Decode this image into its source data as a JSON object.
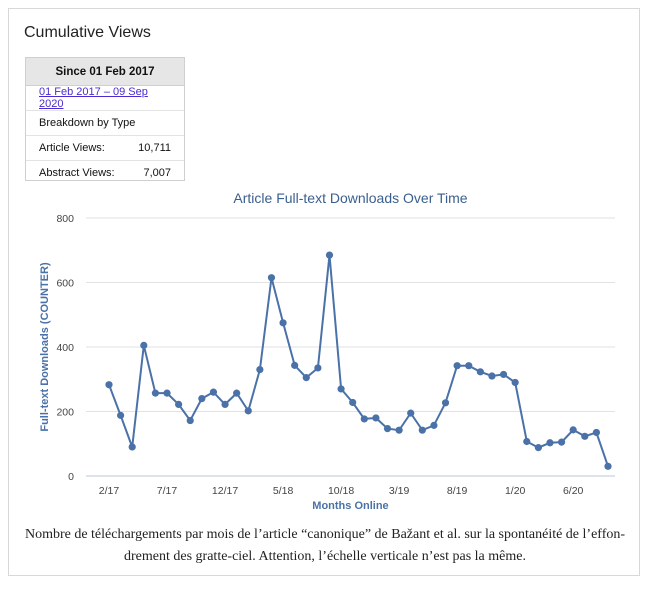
{
  "header": {
    "title": "Cumulative Views"
  },
  "stats": {
    "since": "Since 01 Feb 2017",
    "range": "01 Feb 2017 – 09 Sep 2020",
    "breakdown": "Breakdown by Type",
    "rows": [
      {
        "label": "Article Views:",
        "value": "10,711"
      },
      {
        "label": "Abstract Views:",
        "value": "7,007"
      }
    ]
  },
  "chart_data": {
    "type": "line",
    "title": "Article Full-text Downloads Over Time",
    "xlabel": "Months Online",
    "ylabel": "Full-text Downloads (COUNTER)",
    "ylim": [
      0,
      800
    ],
    "yticks": [
      0,
      200,
      400,
      600,
      800
    ],
    "xtick_labels": [
      {
        "index": 0,
        "label": "2/17"
      },
      {
        "index": 5,
        "label": "7/17"
      },
      {
        "index": 10,
        "label": "12/17"
      },
      {
        "index": 15,
        "label": "5/18"
      },
      {
        "index": 20,
        "label": "10/18"
      },
      {
        "index": 25,
        "label": "3/19"
      },
      {
        "index": 30,
        "label": "8/19"
      },
      {
        "index": 35,
        "label": "1/20"
      },
      {
        "index": 40,
        "label": "6/20"
      }
    ],
    "color": "#4a72a8",
    "grid": true,
    "series": [
      {
        "values": [
          283,
          188,
          90,
          405,
          257,
          257,
          222,
          172,
          240,
          260,
          222,
          257,
          202,
          330,
          615,
          475,
          343,
          305,
          335,
          685,
          270,
          228,
          177,
          180,
          147,
          142,
          195,
          142,
          157,
          227,
          342,
          342,
          323,
          310,
          315,
          290,
          107,
          88,
          103,
          105,
          143,
          123,
          135,
          30
        ]
      }
    ]
  },
  "caption": {
    "line1": "Nombre de téléchargements par mois de l’article “canonique” de Bažant et al. sur la spontanéité de l’effon-",
    "line2": "drement des gratte-ciel. Attention, l’échelle verticale n’est pas la même."
  }
}
